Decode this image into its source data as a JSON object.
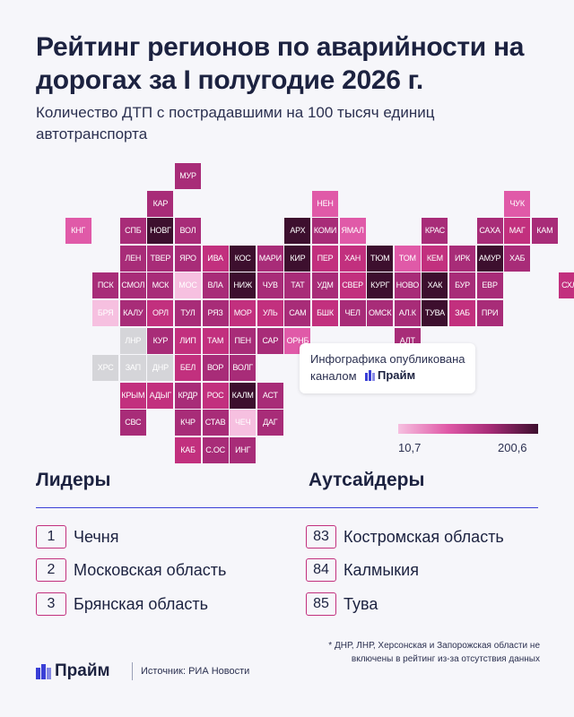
{
  "title": "Рейтинг регионов по аварийности на дорогах за I полугодие 2026 г.",
  "subtitle": "Количество ДТП с пострадавшими на 100 тысяч единиц автотранспорта",
  "colors": {
    "lowest": "#f6c0e0",
    "low": "#e05aa8",
    "mid": "#c2307e",
    "high": "#a82c78",
    "highest": "#3d0f2e",
    "excluded": "#d5d5d9",
    "brand": "#3a3fd6"
  },
  "map": {
    "cells": [
      {
        "label": "МУР",
        "tone": 4
      },
      {
        "label": "КАР",
        "tone": 4
      },
      {
        "label": "НЕН",
        "tone": 2
      },
      {
        "label": "ЧУК",
        "tone": 2
      },
      {
        "label": "КНГ",
        "tone": 2
      },
      {
        "label": "СПБ",
        "tone": 4
      },
      {
        "label": "НОВГ",
        "tone": 5
      },
      {
        "label": "ВОЛ",
        "tone": 4
      },
      {
        "label": "АРХ",
        "tone": 5
      },
      {
        "label": "КОМИ",
        "tone": 4
      },
      {
        "label": "ЯМАЛ",
        "tone": 2
      },
      {
        "label": "КРАС",
        "tone": 4
      },
      {
        "label": "САХА",
        "tone": 4
      },
      {
        "label": "МАГ",
        "tone": 3
      },
      {
        "label": "КАМ",
        "tone": 4
      },
      {
        "label": "ЛЕН",
        "tone": 4
      },
      {
        "label": "ТВЕР",
        "tone": 4
      },
      {
        "label": "ЯРО",
        "tone": 4
      },
      {
        "label": "ИВА",
        "tone": 3
      },
      {
        "label": "КОС",
        "tone": 5
      },
      {
        "label": "МАРИ",
        "tone": 4
      },
      {
        "label": "КИР",
        "tone": 5
      },
      {
        "label": "ПЕР",
        "tone": 3
      },
      {
        "label": "ХАН",
        "tone": 3
      },
      {
        "label": "ТЮМ",
        "tone": 5
      },
      {
        "label": "ТОМ",
        "tone": 2
      },
      {
        "label": "КЕМ",
        "tone": 3
      },
      {
        "label": "ИРК",
        "tone": 4
      },
      {
        "label": "АМУР",
        "tone": 5
      },
      {
        "label": "ХАБ",
        "tone": 4
      },
      {
        "label": "ПСК",
        "tone": 4
      },
      {
        "label": "СМОЛ",
        "tone": 4
      },
      {
        "label": "МСК",
        "tone": 4
      },
      {
        "label": "МОС",
        "tone": 1
      },
      {
        "label": "ВЛА",
        "tone": 4
      },
      {
        "label": "НИЖ",
        "tone": 5
      },
      {
        "label": "ЧУВ",
        "tone": 4
      },
      {
        "label": "ТАТ",
        "tone": 4
      },
      {
        "label": "УДМ",
        "tone": 4
      },
      {
        "label": "СВЕР",
        "tone": 3
      },
      {
        "label": "КУРГ",
        "tone": 5
      },
      {
        "label": "НОВО",
        "tone": 4
      },
      {
        "label": "ХАК",
        "tone": 5
      },
      {
        "label": "БУР",
        "tone": 4
      },
      {
        "label": "ЕВР",
        "tone": 4
      },
      {
        "label": "СХЛН",
        "tone": 3
      },
      {
        "label": "БРЯ",
        "tone": 1
      },
      {
        "label": "КАЛУ",
        "tone": 4
      },
      {
        "label": "ОРЛ",
        "tone": 3
      },
      {
        "label": "ТУЛ",
        "tone": 4
      },
      {
        "label": "РЯЗ",
        "tone": 4
      },
      {
        "label": "МОР",
        "tone": 3
      },
      {
        "label": "УЛЬ",
        "tone": 3
      },
      {
        "label": "САМ",
        "tone": 4
      },
      {
        "label": "БШК",
        "tone": 3
      },
      {
        "label": "ЧЕЛ",
        "tone": 4
      },
      {
        "label": "ОМСК",
        "tone": 4
      },
      {
        "label": "АЛ.К",
        "tone": 4
      },
      {
        "label": "ТУВА",
        "tone": 5
      },
      {
        "label": "ЗАБ",
        "tone": 3
      },
      {
        "label": "ПРИ",
        "tone": 4
      },
      {
        "label": "ЛНР",
        "tone": 0
      },
      {
        "label": "КУР",
        "tone": 4
      },
      {
        "label": "ЛИП",
        "tone": 3
      },
      {
        "label": "ТАМ",
        "tone": 3
      },
      {
        "label": "ПЕН",
        "tone": 4
      },
      {
        "label": "САР",
        "tone": 4
      },
      {
        "label": "ОРНБ",
        "tone": 2
      },
      {
        "label": "АЛТ",
        "tone": 4
      },
      {
        "label": "ХРС",
        "tone": 0
      },
      {
        "label": "ЗАП",
        "tone": 0
      },
      {
        "label": "ДНР",
        "tone": 0
      },
      {
        "label": "БЕЛ",
        "tone": 3
      },
      {
        "label": "ВОР",
        "tone": 4
      },
      {
        "label": "ВОЛГ",
        "tone": 4
      },
      {
        "label": "КРЫМ",
        "tone": 3
      },
      {
        "label": "АДЫГ",
        "tone": 3
      },
      {
        "label": "КРДР",
        "tone": 4
      },
      {
        "label": "РОС",
        "tone": 3
      },
      {
        "label": "КАЛМ",
        "tone": 5
      },
      {
        "label": "АСТ",
        "tone": 4
      },
      {
        "label": "СВС",
        "tone": 4
      },
      {
        "label": "КЧР",
        "tone": 4
      },
      {
        "label": "СТАВ",
        "tone": 4
      },
      {
        "label": "ЧЕЧ",
        "tone": 1
      },
      {
        "label": "ДАГ",
        "tone": 4
      },
      {
        "label": "КАБ",
        "tone": 3
      },
      {
        "label": "С.ОС",
        "tone": 4
      },
      {
        "label": "ИНГ",
        "tone": 4
      }
    ]
  },
  "callout": {
    "line1": "Инфографика опубликована",
    "line2": "каналом",
    "brand": "Прайм"
  },
  "legend": {
    "min": "10,7",
    "max": "200,6"
  },
  "leaders": {
    "title": "Лидеры",
    "items": [
      {
        "rank": "1",
        "name": "Чечня"
      },
      {
        "rank": "2",
        "name": "Московская область"
      },
      {
        "rank": "3",
        "name": "Брянская область"
      }
    ]
  },
  "outsiders": {
    "title": "Аутсайдеры",
    "items": [
      {
        "rank": "83",
        "name": "Костромская область"
      },
      {
        "rank": "84",
        "name": "Калмыкия"
      },
      {
        "rank": "85",
        "name": "Тува"
      }
    ]
  },
  "footnote": "* ДНР, ЛНР, Херсонская и Запорожская области не включены в рейтинг из-за отсутствия данных",
  "footer": {
    "brand": "Прайм",
    "source": "Источник: РИА Новости"
  }
}
